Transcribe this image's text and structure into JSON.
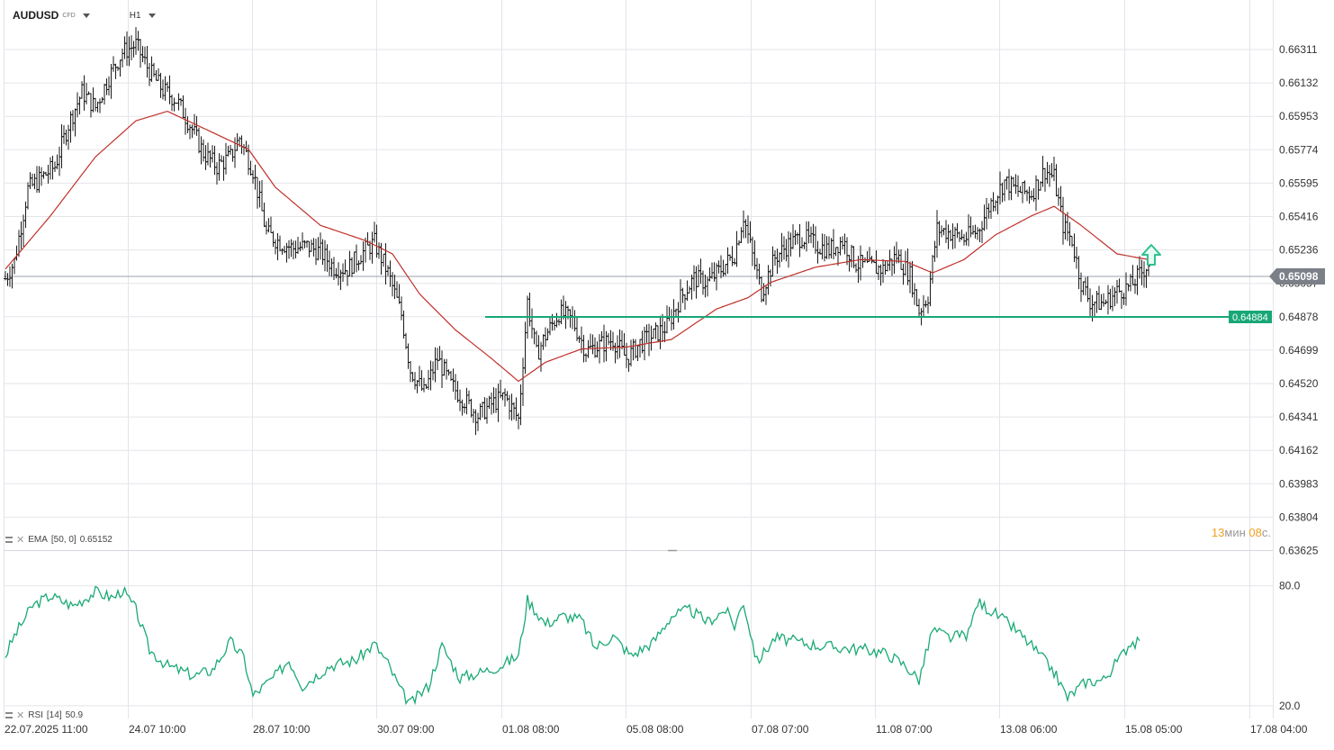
{
  "toolbar": {
    "symbol": "AUDUSD",
    "symbol_tag": "CFD",
    "timeframe": "H1"
  },
  "indicators": {
    "ema_name": "EMA",
    "ema_params": "[50, 0]",
    "ema_value": "0.65152",
    "rsi_name": "RSI",
    "rsi_params": "[14]",
    "rsi_value": "50.9"
  },
  "timer": {
    "minutes": "13",
    "min_unit": "мин",
    "seconds": "08",
    "sec_unit": "с."
  },
  "colors": {
    "candle": "#1a1a1a",
    "ema_line": "#c0302a",
    "rsi_line": "#1aaa74",
    "support_line": "#18a777",
    "label_bg": "#18a777",
    "price_badge": "#7b7f88",
    "arrow": "#2fc18f",
    "grid": "#e3e5ea"
  },
  "icons": {
    "arrow": "arrow-up-icon",
    "drag": "drag-handle-icon",
    "close": "close-icon"
  },
  "chart_data": [
    {
      "type": "candlestick",
      "title": "AUDUSD H1",
      "y_ticks": [
        "0.66311",
        "0.66132",
        "0.65953",
        "0.65774",
        "0.65595",
        "0.65416",
        "0.65236",
        "0.65057",
        "0.64878",
        "0.64699",
        "0.64520",
        "0.64341",
        "0.64162",
        "0.63983",
        "0.63804",
        "0.63625"
      ],
      "ylim": [
        0.6354,
        0.664
      ],
      "x_ticks": [
        "22.07.2025  11:00",
        "24.07  10:00",
        "28.07  10:00",
        "30.07  09:00",
        "01.08  08:00",
        "05.08  08:00",
        "07.08  07:00",
        "11.08  07:00",
        "13.08  06:00",
        "15.08  05:00",
        "17.08  04:00"
      ],
      "current_price": "0.65098",
      "support_level": "0.64884",
      "support_value": 0.64884,
      "ema_value": 0.65152,
      "close_path": [
        [
          0,
          0.6502
        ],
        [
          4,
          0.6511
        ],
        [
          10,
          0.6549
        ],
        [
          16,
          0.6555
        ],
        [
          22,
          0.6561
        ],
        [
          28,
          0.6583
        ],
        [
          34,
          0.66
        ],
        [
          40,
          0.6592
        ],
        [
          46,
          0.6608
        ],
        [
          52,
          0.6621
        ],
        [
          58,
          0.6625
        ],
        [
          64,
          0.6611
        ],
        [
          70,
          0.6601
        ],
        [
          76,
          0.6596
        ],
        [
          82,
          0.6583
        ],
        [
          88,
          0.6568
        ],
        [
          94,
          0.6561
        ],
        [
          100,
          0.6566
        ],
        [
          104,
          0.6576
        ],
        [
          110,
          0.6559
        ],
        [
          116,
          0.6526
        ],
        [
          122,
          0.6521
        ],
        [
          128,
          0.6518
        ],
        [
          134,
          0.6519
        ],
        [
          140,
          0.6516
        ],
        [
          146,
          0.6508
        ],
        [
          152,
          0.6507
        ],
        [
          158,
          0.6515
        ],
        [
          164,
          0.6521
        ],
        [
          170,
          0.6505
        ],
        [
          176,
          0.6483
        ],
        [
          180,
          0.6454
        ],
        [
          186,
          0.6442
        ],
        [
          192,
          0.646
        ],
        [
          198,
          0.6446
        ],
        [
          204,
          0.6438
        ],
        [
          210,
          0.643
        ],
        [
          216,
          0.6436
        ],
        [
          222,
          0.644
        ],
        [
          228,
          0.6428
        ],
        [
          232,
          0.649
        ],
        [
          236,
          0.6462
        ],
        [
          240,
          0.6472
        ],
        [
          246,
          0.6484
        ],
        [
          252,
          0.648
        ],
        [
          258,
          0.6464
        ],
        [
          264,
          0.6467
        ],
        [
          270,
          0.647
        ],
        [
          276,
          0.646
        ],
        [
          282,
          0.6468
        ],
        [
          288,
          0.6472
        ],
        [
          294,
          0.6477
        ],
        [
          300,
          0.6492
        ],
        [
          306,
          0.6502
        ],
        [
          312,
          0.65
        ],
        [
          318,
          0.6507
        ],
        [
          324,
          0.6515
        ],
        [
          328,
          0.6535
        ],
        [
          332,
          0.6514
        ],
        [
          336,
          0.6495
        ],
        [
          342,
          0.6513
        ],
        [
          348,
          0.652
        ],
        [
          354,
          0.6524
        ],
        [
          360,
          0.652
        ],
        [
          366,
          0.6517
        ],
        [
          372,
          0.6522
        ],
        [
          378,
          0.651
        ],
        [
          384,
          0.6508
        ],
        [
          390,
          0.6507
        ],
        [
          396,
          0.6514
        ],
        [
          402,
          0.6504
        ],
        [
          406,
          0.6485
        ],
        [
          410,
          0.6493
        ],
        [
          414,
          0.6528
        ],
        [
          420,
          0.6526
        ],
        [
          426,
          0.6523
        ],
        [
          432,
          0.6527
        ],
        [
          438,
          0.6542
        ],
        [
          444,
          0.6553
        ],
        [
          450,
          0.6548
        ],
        [
          456,
          0.6547
        ],
        [
          462,
          0.6559
        ],
        [
          466,
          0.6555
        ],
        [
          470,
          0.653
        ],
        [
          474,
          0.6522
        ],
        [
          478,
          0.65
        ],
        [
          482,
          0.649
        ],
        [
          488,
          0.6489
        ],
        [
          494,
          0.6495
        ],
        [
          500,
          0.6498
        ],
        [
          504,
          0.6504
        ],
        [
          508,
          0.651
        ]
      ],
      "ema_path": [
        [
          0,
          0.6507
        ],
        [
          20,
          0.6535
        ],
        [
          40,
          0.6566
        ],
        [
          58,
          0.6585
        ],
        [
          72,
          0.659
        ],
        [
          90,
          0.658
        ],
        [
          108,
          0.657
        ],
        [
          120,
          0.655
        ],
        [
          140,
          0.653
        ],
        [
          160,
          0.6522
        ],
        [
          172,
          0.6515
        ],
        [
          184,
          0.6494
        ],
        [
          200,
          0.6475
        ],
        [
          216,
          0.646
        ],
        [
          228,
          0.6448
        ],
        [
          240,
          0.6458
        ],
        [
          256,
          0.6465
        ],
        [
          276,
          0.6466
        ],
        [
          296,
          0.647
        ],
        [
          316,
          0.6486
        ],
        [
          330,
          0.6492
        ],
        [
          340,
          0.65
        ],
        [
          360,
          0.6508
        ],
        [
          380,
          0.6512
        ],
        [
          400,
          0.6511
        ],
        [
          412,
          0.6505
        ],
        [
          426,
          0.6512
        ],
        [
          440,
          0.6525
        ],
        [
          456,
          0.6535
        ],
        [
          466,
          0.654
        ],
        [
          478,
          0.653
        ],
        [
          494,
          0.6515
        ],
        [
          508,
          0.6512
        ]
      ],
      "n_bars": 508
    },
    {
      "type": "line",
      "title": "RSI [14] 50.9",
      "y_ticks": [
        "80.0",
        "20.0"
      ],
      "ylim": [
        15,
        92
      ],
      "values_path": [
        [
          0,
          45
        ],
        [
          4,
          55
        ],
        [
          12,
          70
        ],
        [
          20,
          75
        ],
        [
          30,
          70
        ],
        [
          40,
          77
        ],
        [
          48,
          74
        ],
        [
          52,
          78
        ],
        [
          58,
          68
        ],
        [
          64,
          48
        ],
        [
          72,
          40
        ],
        [
          84,
          35
        ],
        [
          92,
          38
        ],
        [
          100,
          52
        ],
        [
          106,
          44
        ],
        [
          110,
          25
        ],
        [
          120,
          35
        ],
        [
          126,
          43
        ],
        [
          132,
          30
        ],
        [
          144,
          40
        ],
        [
          156,
          43
        ],
        [
          164,
          51
        ],
        [
          170,
          41
        ],
        [
          176,
          27
        ],
        [
          180,
          21
        ],
        [
          188,
          30
        ],
        [
          194,
          50
        ],
        [
          202,
          34
        ],
        [
          212,
          37
        ],
        [
          220,
          40
        ],
        [
          228,
          45
        ],
        [
          232,
          73
        ],
        [
          240,
          61
        ],
        [
          248,
          65
        ],
        [
          256,
          63
        ],
        [
          262,
          49
        ],
        [
          270,
          55
        ],
        [
          278,
          45
        ],
        [
          288,
          52
        ],
        [
          296,
          65
        ],
        [
          304,
          68
        ],
        [
          312,
          62
        ],
        [
          320,
          68
        ],
        [
          324,
          60
        ],
        [
          328,
          72
        ],
        [
          334,
          42
        ],
        [
          342,
          54
        ],
        [
          352,
          52
        ],
        [
          362,
          50
        ],
        [
          372,
          49
        ],
        [
          384,
          48
        ],
        [
          392,
          46
        ],
        [
          400,
          40
        ],
        [
          406,
          33
        ],
        [
          412,
          58
        ],
        [
          420,
          54
        ],
        [
          428,
          56
        ],
        [
          432,
          72
        ],
        [
          440,
          66
        ],
        [
          448,
          59
        ],
        [
          456,
          50
        ],
        [
          466,
          37
        ],
        [
          472,
          24
        ],
        [
          480,
          32
        ],
        [
          488,
          33
        ],
        [
          496,
          45
        ],
        [
          500,
          52
        ],
        [
          504,
          51
        ]
      ]
    }
  ]
}
